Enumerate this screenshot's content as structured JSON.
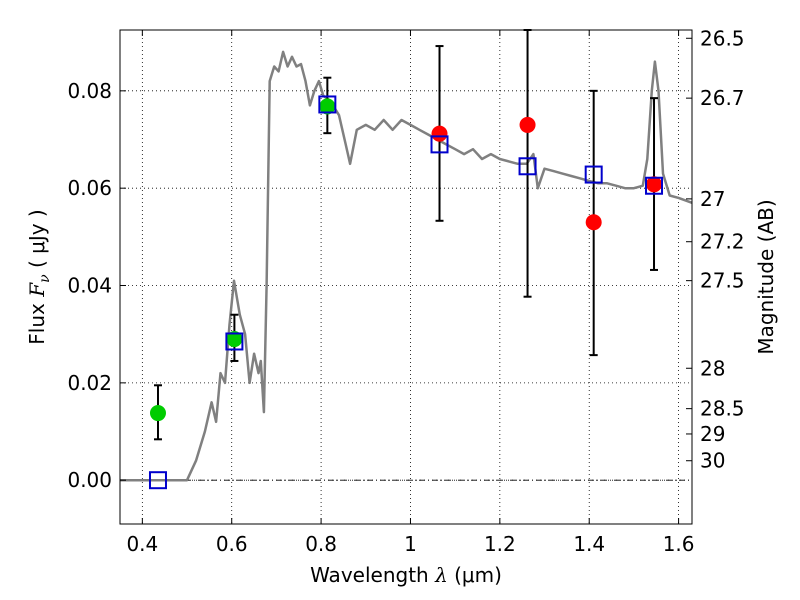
{
  "chart_data": {
    "type": "scatter",
    "xlabel": {
      "prefix": "Wavelength  ",
      "symbol": "λ",
      "unit": " (μm)"
    },
    "ylabel": {
      "prefix": "Flux  ",
      "symbol": "F",
      "subscript": "ν",
      "unit": "  ( μJy )"
    },
    "y2label": "Magnitude (AB)",
    "xlim": [
      0.35,
      1.63
    ],
    "ylim": [
      -0.009,
      0.0925
    ],
    "grid": true,
    "x_ticks": [
      0.4,
      0.6,
      0.8,
      1.0,
      1.2,
      1.4,
      1.6
    ],
    "x_tick_labels": [
      "0.4",
      "0.6",
      "0.8",
      "1",
      "1.2",
      "1.4",
      "1.6"
    ],
    "y_ticks": [
      0.0,
      0.02,
      0.04,
      0.06,
      0.08
    ],
    "y_tick_labels": [
      "0.00",
      "0.02",
      "0.04",
      "0.06",
      "0.08"
    ],
    "right_ticks": [
      {
        "flux": 0.0908,
        "label": "26.5"
      },
      {
        "flux": 0.0785,
        "label": "26.7"
      },
      {
        "flux": 0.0578,
        "label": "27"
      },
      {
        "flux": 0.049,
        "label": "27.2"
      },
      {
        "flux": 0.041,
        "label": "27.5"
      },
      {
        "flux": 0.023,
        "label": "28"
      },
      {
        "flux": 0.0147,
        "label": "28.5"
      },
      {
        "flux": 0.0095,
        "label": "29"
      },
      {
        "flux": 0.004,
        "label": "30"
      }
    ],
    "colors": {
      "model": "#808080",
      "green": "#00cc00",
      "red": "#ff0000",
      "square": "#0000cc",
      "errorbar": "#000000"
    },
    "series": [
      {
        "marker": "circle",
        "color": "green",
        "points": [
          {
            "x": 0.435,
            "y": 0.0138,
            "ylo": 0.0084,
            "yhi": 0.0195
          },
          {
            "x": 0.606,
            "y": 0.029,
            "ylo": 0.0245,
            "yhi": 0.034
          },
          {
            "x": 0.814,
            "y": 0.0768,
            "ylo": 0.0713,
            "yhi": 0.0827
          }
        ]
      },
      {
        "marker": "circle",
        "color": "red",
        "points": [
          {
            "x": 1.065,
            "y": 0.0712,
            "ylo": 0.0533,
            "yhi": 0.0892
          },
          {
            "x": 1.262,
            "y": 0.073,
            "ylo": 0.0377,
            "yhi": 0.0925
          },
          {
            "x": 1.41,
            "y": 0.053,
            "ylo": 0.0257,
            "yhi": 0.08
          },
          {
            "x": 1.545,
            "y": 0.0608,
            "ylo": 0.0432,
            "yhi": 0.0785
          }
        ]
      },
      {
        "marker": "square",
        "color": "square",
        "points": [
          {
            "x": 0.435,
            "y": 0.0
          },
          {
            "x": 0.606,
            "y": 0.0285
          },
          {
            "x": 0.814,
            "y": 0.0772
          },
          {
            "x": 1.065,
            "y": 0.069
          },
          {
            "x": 1.262,
            "y": 0.0645
          },
          {
            "x": 1.41,
            "y": 0.0628
          },
          {
            "x": 1.545,
            "y": 0.0605
          }
        ]
      }
    ],
    "model_line": [
      [
        0.35,
        0.0
      ],
      [
        0.5,
        0.0
      ],
      [
        0.52,
        0.004
      ],
      [
        0.54,
        0.01
      ],
      [
        0.555,
        0.016
      ],
      [
        0.565,
        0.012
      ],
      [
        0.575,
        0.022
      ],
      [
        0.585,
        0.02
      ],
      [
        0.595,
        0.032
      ],
      [
        0.605,
        0.041
      ],
      [
        0.618,
        0.034
      ],
      [
        0.63,
        0.03
      ],
      [
        0.64,
        0.02
      ],
      [
        0.65,
        0.026
      ],
      [
        0.66,
        0.022
      ],
      [
        0.665,
        0.0245
      ],
      [
        0.672,
        0.014
      ],
      [
        0.678,
        0.04
      ],
      [
        0.685,
        0.082
      ],
      [
        0.695,
        0.085
      ],
      [
        0.705,
        0.084
      ],
      [
        0.715,
        0.088
      ],
      [
        0.725,
        0.085
      ],
      [
        0.735,
        0.087
      ],
      [
        0.745,
        0.085
      ],
      [
        0.755,
        0.0855
      ],
      [
        0.765,
        0.082
      ],
      [
        0.775,
        0.077
      ],
      [
        0.785,
        0.08
      ],
      [
        0.795,
        0.082
      ],
      [
        0.805,
        0.079
      ],
      [
        0.82,
        0.078
      ],
      [
        0.84,
        0.075
      ],
      [
        0.855,
        0.069
      ],
      [
        0.865,
        0.065
      ],
      [
        0.88,
        0.072
      ],
      [
        0.9,
        0.073
      ],
      [
        0.92,
        0.072
      ],
      [
        0.94,
        0.074
      ],
      [
        0.96,
        0.072
      ],
      [
        0.98,
        0.074
      ],
      [
        1.0,
        0.073
      ],
      [
        1.02,
        0.072
      ],
      [
        1.04,
        0.071
      ],
      [
        1.06,
        0.07
      ],
      [
        1.08,
        0.069
      ],
      [
        1.1,
        0.068
      ],
      [
        1.12,
        0.067
      ],
      [
        1.14,
        0.068
      ],
      [
        1.16,
        0.066
      ],
      [
        1.18,
        0.067
      ],
      [
        1.2,
        0.066
      ],
      [
        1.22,
        0.0655
      ],
      [
        1.24,
        0.065
      ],
      [
        1.26,
        0.065
      ],
      [
        1.275,
        0.067
      ],
      [
        1.285,
        0.06
      ],
      [
        1.3,
        0.064
      ],
      [
        1.32,
        0.0635
      ],
      [
        1.34,
        0.063
      ],
      [
        1.36,
        0.0625
      ],
      [
        1.38,
        0.062
      ],
      [
        1.4,
        0.0615
      ],
      [
        1.42,
        0.061
      ],
      [
        1.44,
        0.061
      ],
      [
        1.46,
        0.0605
      ],
      [
        1.48,
        0.06
      ],
      [
        1.5,
        0.06
      ],
      [
        1.52,
        0.0605
      ],
      [
        1.53,
        0.066
      ],
      [
        1.54,
        0.08
      ],
      [
        1.547,
        0.086
      ],
      [
        1.555,
        0.08
      ],
      [
        1.565,
        0.063
      ],
      [
        1.58,
        0.0585
      ],
      [
        1.6,
        0.058
      ],
      [
        1.63,
        0.057
      ]
    ]
  }
}
